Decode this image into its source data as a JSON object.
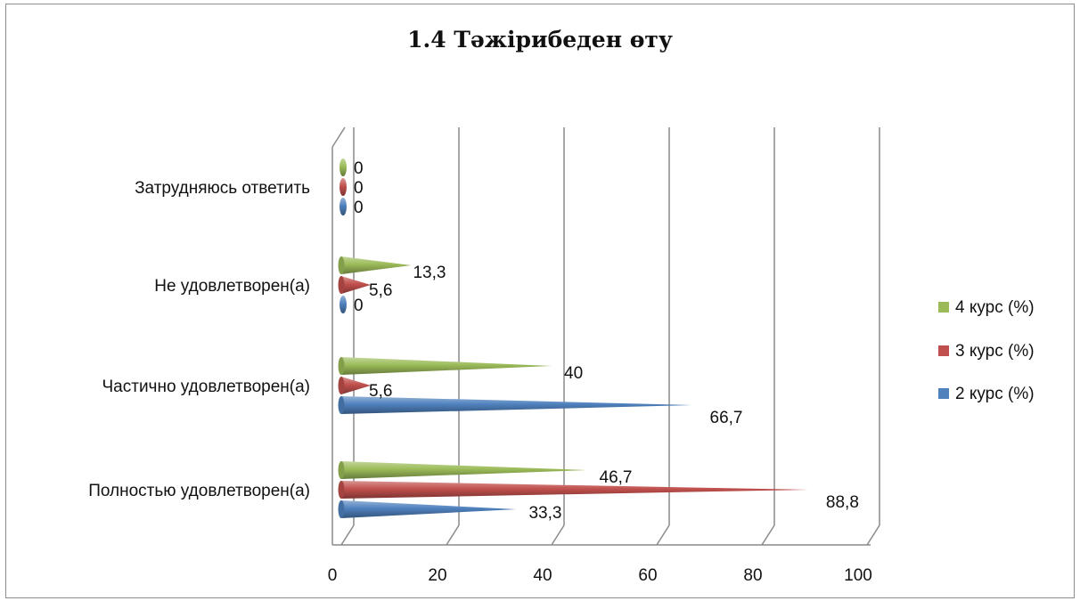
{
  "chart_data": {
    "type": "bar",
    "orientation": "horizontal",
    "title": "1.4 Тәжірибеден өту",
    "categories": [
      "Полностью удовлетворен(а)",
      "Частично удовлетворен(а)",
      "Не удовлетворен(а)",
      "Затрудняюсь ответить"
    ],
    "series": [
      {
        "name": "2 курс (%)",
        "values": [
          33.3,
          66.7,
          0,
          0
        ],
        "labels": [
          "33,3",
          "66,7",
          "0",
          "0"
        ],
        "color": "#4f81bd"
      },
      {
        "name": "3 курс (%)",
        "values": [
          88.8,
          5.6,
          5.6,
          0
        ],
        "labels": [
          "88,8",
          "5,6",
          "5,6",
          "0"
        ],
        "color": "#c0504d"
      },
      {
        "name": "4 курс (%)",
        "values": [
          46.7,
          40,
          13.3,
          0
        ],
        "labels": [
          "46,7",
          "40",
          "13,3",
          "0"
        ],
        "color": "#9bbb59"
      }
    ],
    "xlim": [
      0,
      100
    ],
    "xticks": [
      "0",
      "20",
      "40",
      "60",
      "80",
      "100"
    ],
    "grid": true,
    "legend": "right",
    "legend_order": [
      "4 курс (%)",
      "3 курс (%)",
      "2 курс (%)"
    ]
  }
}
